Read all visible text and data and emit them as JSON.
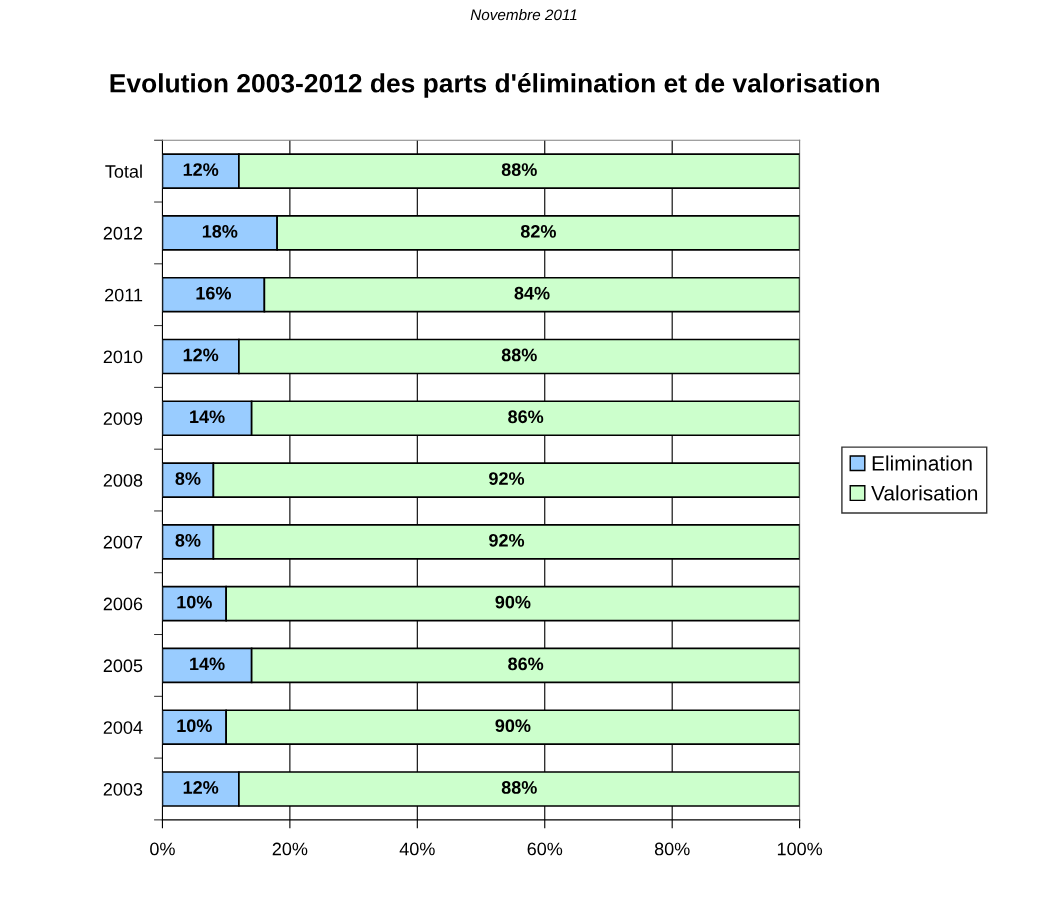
{
  "chart_data": {
    "type": "bar",
    "orientation": "horizontal",
    "stacked": true,
    "title": "Evolution 2003-2012 des parts d'élimination et de valorisation",
    "annotations": [
      "Novembre 2011"
    ],
    "categories": [
      "Total",
      "2012",
      "2011",
      "2010",
      "2009",
      "2008",
      "2007",
      "2006",
      "2005",
      "2004",
      "2003"
    ],
    "series": [
      {
        "name": "Elimination",
        "color": "#99ccff",
        "values": [
          12,
          18,
          16,
          12,
          14,
          8,
          8,
          10,
          14,
          10,
          12
        ],
        "value_labels": [
          "12%",
          "18%",
          "16%",
          "12%",
          "14%",
          "8%",
          "8%",
          "10%",
          "14%",
          "10%",
          "12%"
        ]
      },
      {
        "name": "Valorisation",
        "color": "#ccffcc",
        "values": [
          88,
          82,
          84,
          88,
          86,
          92,
          92,
          90,
          86,
          90,
          88
        ],
        "value_labels": [
          "88%",
          "82%",
          "84%",
          "88%",
          "86%",
          "92%",
          "92%",
          "90%",
          "86%",
          "90%",
          "88%"
        ]
      }
    ],
    "xlim": [
      0,
      100
    ],
    "xticks": [
      {
        "value": 0,
        "label": "0%"
      },
      {
        "value": 20,
        "label": "20%"
      },
      {
        "value": 40,
        "label": "40%"
      },
      {
        "value": 60,
        "label": "60%"
      },
      {
        "value": 80,
        "label": "80%"
      },
      {
        "value": 100,
        "label": "100%"
      }
    ],
    "grid": "x",
    "legend": "right"
  }
}
